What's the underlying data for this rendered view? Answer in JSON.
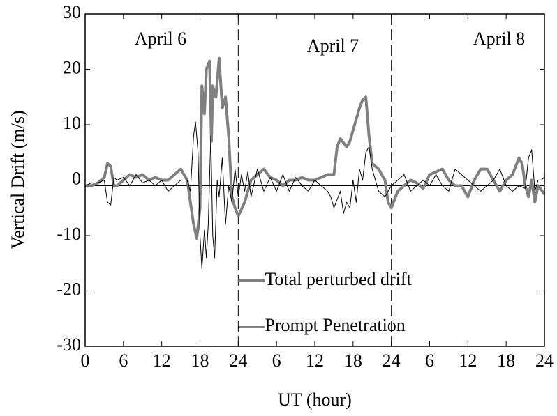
{
  "chart_data": {
    "type": "line",
    "xlabel": "UT (hour)",
    "ylabel": "Vertical Drift  (m/s)",
    "annotations": [
      "April 6",
      "April 7",
      "April 8"
    ],
    "xlim": [
      0,
      72
    ],
    "ylim": [
      -30,
      30
    ],
    "xticks": [
      0,
      6,
      12,
      18,
      24,
      {
        "value": 30,
        "label": "6"
      },
      {
        "value": 36,
        "label": "12"
      },
      {
        "value": 42,
        "label": "18"
      },
      {
        "value": 48,
        "label": "24"
      },
      {
        "value": 54,
        "label": "6"
      },
      {
        "value": 60,
        "label": "12"
      },
      {
        "value": 66,
        "label": "18"
      },
      {
        "value": 72,
        "label": "24"
      }
    ],
    "yticks": [
      -30,
      -20,
      -10,
      0,
      10,
      20,
      30
    ],
    "day_boundaries": [
      24,
      48
    ],
    "reference_line": -1,
    "legend": "lower center",
    "series": [
      {
        "name": "Total perturbed drift",
        "color": "#808080",
        "x": [
          0,
          1,
          2,
          3,
          3.5,
          4,
          4.5,
          5,
          6,
          7,
          8,
          9,
          10,
          11,
          12,
          13,
          14,
          15,
          16,
          17,
          17.5,
          18,
          18.3,
          18.7,
          19,
          19.5,
          19.8,
          20,
          20.5,
          21,
          21.5,
          22,
          22.5,
          23,
          23.5,
          24,
          25,
          26,
          27,
          28,
          29,
          30,
          31,
          32,
          33,
          34,
          35,
          36,
          37,
          38,
          39,
          39.5,
          40,
          41,
          41.5,
          42,
          43,
          43.5,
          44,
          44.5,
          45,
          46,
          47,
          47.5,
          48,
          49,
          50,
          51,
          52,
          53,
          54,
          55,
          56,
          57,
          58,
          59,
          60,
          61,
          62,
          63,
          64,
          65,
          66,
          67,
          68,
          68.5,
          69,
          69.5,
          70,
          70.5,
          71,
          72
        ],
        "values": [
          -1,
          -1,
          -0.5,
          0.5,
          3,
          2.5,
          -1,
          -1,
          0,
          1,
          0.5,
          1,
          0,
          0.5,
          0,
          0,
          1,
          2,
          0,
          -8,
          -10.5,
          -5,
          17,
          12,
          20,
          21.5,
          7,
          17,
          15,
          22,
          13,
          15,
          8,
          -3,
          -5,
          -6.5,
          -4,
          0,
          1,
          2,
          0.5,
          0,
          -1,
          0,
          0,
          0.5,
          0,
          0,
          0.5,
          1,
          1,
          6,
          7.5,
          6,
          7,
          9,
          13,
          14.5,
          15,
          8,
          3,
          2,
          0,
          -4,
          -5,
          -2,
          -1,
          0,
          -0.5,
          -1.5,
          1,
          1.5,
          2,
          0,
          -1,
          -1,
          -3,
          0,
          2,
          2,
          0,
          -2,
          0,
          1,
          4,
          3,
          -1,
          -3,
          0,
          -4,
          -1,
          -2.5
        ]
      },
      {
        "name": "Prompt Penetration",
        "color": "#000000",
        "x": [
          0,
          1,
          2,
          3,
          3.5,
          4,
          4.5,
          5,
          6,
          7,
          8,
          9,
          10,
          11,
          12,
          13,
          14,
          15,
          16,
          16.5,
          17,
          17.3,
          17.7,
          18,
          18.3,
          18.7,
          19,
          19.3,
          19.7,
          20,
          20.3,
          20.7,
          21,
          21.5,
          22,
          22.5,
          23,
          23.5,
          24,
          24.5,
          25,
          25.5,
          26,
          27,
          28,
          29,
          30,
          31,
          32,
          33,
          34,
          35,
          36,
          37,
          38,
          38.5,
          39,
          40,
          40.5,
          41,
          41.5,
          42,
          42.5,
          43,
          43.5,
          44,
          44.5,
          45,
          46,
          47,
          48,
          49,
          50,
          51,
          52,
          53,
          54,
          55,
          56,
          57,
          58,
          59,
          60,
          61,
          62,
          63,
          64,
          65,
          66,
          67,
          68,
          69,
          69.5,
          70,
          70.5,
          71,
          71.5,
          72
        ],
        "values": [
          -1,
          -0.5,
          -0.5,
          0,
          -4,
          -4.5,
          0.5,
          0,
          0.5,
          -1,
          1,
          -0.5,
          0,
          -1,
          0,
          -2,
          -1,
          0,
          0,
          -2,
          8,
          10.5,
          5,
          -10,
          -16,
          -9,
          -14,
          -8,
          8,
          -10,
          -14,
          0,
          -3,
          4,
          -8,
          -1,
          -4,
          2,
          -3,
          1,
          -2,
          1.5,
          -3,
          2,
          -2,
          0.5,
          -2,
          1,
          -2,
          0.5,
          -1,
          -2,
          0,
          -1,
          -2,
          -3,
          -5,
          -2,
          -6,
          -4,
          -5,
          0,
          -4,
          2,
          0,
          5,
          6,
          2,
          -2,
          -3,
          -1,
          0,
          1,
          -2,
          -1,
          0,
          -1,
          1,
          -1,
          -2,
          2,
          1,
          0,
          -1,
          -2,
          -1,
          0,
          2,
          -1,
          -2,
          -1,
          -1.5,
          4,
          5.5,
          -2,
          0,
          0,
          0.5
        ]
      }
    ]
  }
}
